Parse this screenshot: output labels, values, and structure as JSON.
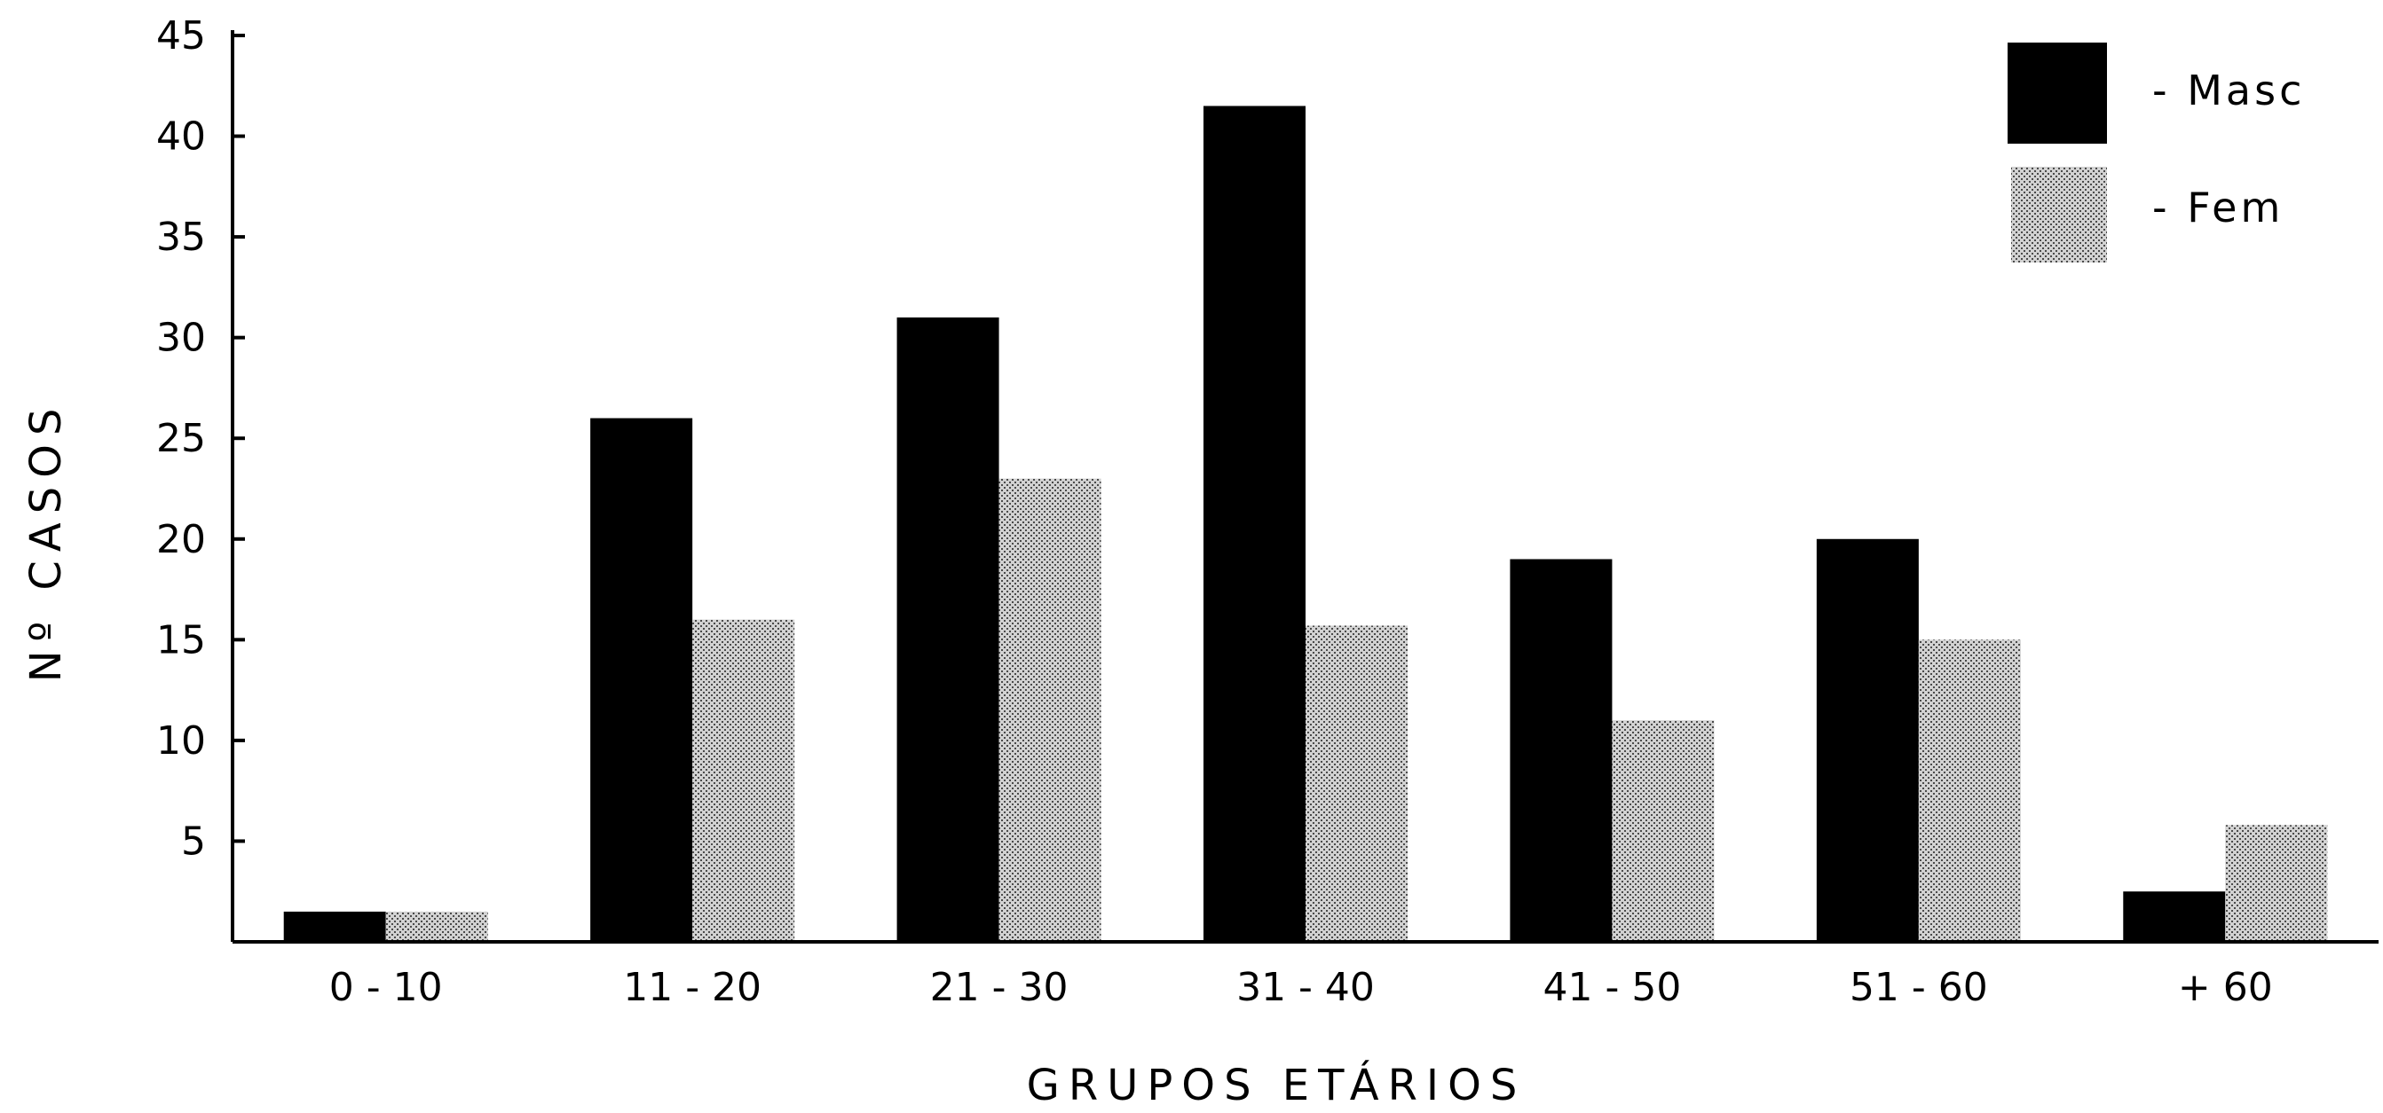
{
  "chart_data": {
    "type": "bar",
    "xlabel": "GRUPOS ETÁRIOS",
    "ylabel": "Nº CASOS",
    "categories": [
      "0 - 10",
      "11 - 20",
      "21 - 30",
      "31 - 40",
      "41 - 50",
      "51 - 60",
      "+ 60"
    ],
    "yticks": [
      "5",
      "10",
      "15",
      "20",
      "25",
      "30",
      "35",
      "40",
      "45"
    ],
    "ylim": [
      0,
      45
    ],
    "legend_position": "top-right",
    "series": [
      {
        "name": "- Masc",
        "color": "#000000",
        "fill": "solid",
        "values": [
          1.5,
          26,
          31,
          41.5,
          19,
          20,
          2.5
        ]
      },
      {
        "name": "- Fem",
        "color": "#9a9a9a",
        "fill": "dotted",
        "values": [
          1.5,
          16,
          23,
          15.7,
          11,
          15,
          5.8
        ]
      }
    ]
  }
}
